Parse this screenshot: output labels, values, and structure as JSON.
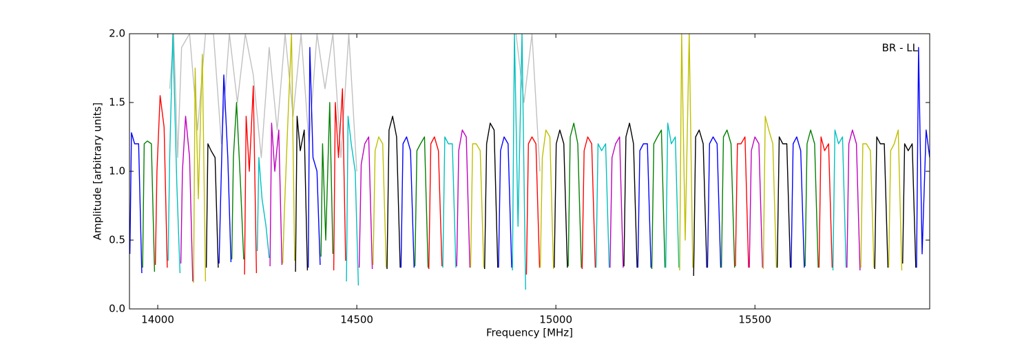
{
  "chart_data": {
    "type": "line",
    "xlabel": "Frequency [MHz]",
    "ylabel": "Amplitude [arbitrary units]",
    "annotation": "BR - LL",
    "xlim": [
      13929,
      15939
    ],
    "ylim": [
      0,
      2
    ],
    "xticks": [
      14000,
      14500,
      15000,
      15500
    ],
    "yticks": [
      {
        "value": 0,
        "label": "0.0"
      },
      {
        "value": 0.5,
        "label": "0.5"
      },
      {
        "value": 1,
        "label": "1.0"
      },
      {
        "value": 1.5,
        "label": "1.5"
      },
      {
        "value": 2,
        "label": "2.0"
      }
    ],
    "series": [
      {
        "color": "#c0c0c0",
        "x": [
          14030,
          14040,
          14050,
          14060,
          14080,
          14100,
          14120,
          14140,
          14160,
          14180,
          14200,
          14220,
          14240,
          14260,
          14280,
          14300,
          14320,
          14340,
          14360,
          14380,
          14400,
          14420,
          14440,
          14460,
          14480,
          14500,
          14700,
          14900,
          14920,
          14940,
          14960
        ],
        "values": [
          1.6,
          2.0,
          1.1,
          1.9,
          2.0,
          1.3,
          2.0,
          2.0,
          1.2,
          2.0,
          1.5,
          2.0,
          1.7,
          1.1,
          1.9,
          1.3,
          2.0,
          1.4,
          2.0,
          1.2,
          2.0,
          1.6,
          2.0,
          1.1,
          2.0,
          1.0,
          null,
          2.0,
          1.5,
          2.0,
          1.0
        ]
      },
      {
        "color": "#0000ff",
        "x": [
          13930,
          13934,
          13942,
          13952,
          13960
        ],
        "values": [
          0.4,
          1.28,
          1.2,
          1.2,
          0.26
        ]
      },
      {
        "color": "#008000",
        "x": [
          13962,
          13966,
          13974,
          13984,
          13992
        ],
        "values": [
          0.3,
          1.2,
          1.22,
          1.2,
          0.27
        ]
      },
      {
        "color": "#ff0000",
        "x": [
          13994,
          13998,
          14006,
          14016,
          14024
        ],
        "values": [
          0.32,
          1.0,
          1.55,
          1.32,
          0.3
        ]
      },
      {
        "color": "#00bfbf",
        "x": [
          14026,
          14030,
          14038,
          14048,
          14056
        ],
        "values": [
          0.35,
          1.1,
          2.0,
          0.9,
          0.26
        ]
      },
      {
        "color": "#bf00bf",
        "x": [
          14058,
          14062,
          14070,
          14080,
          14088
        ],
        "values": [
          0.33,
          1.0,
          1.4,
          1.1,
          0.2
        ]
      },
      {
        "color": "#bfbf00",
        "x": [
          14090,
          14094,
          14102,
          14112,
          14120
        ],
        "values": [
          0.19,
          1.75,
          0.8,
          1.85,
          0.2
        ]
      },
      {
        "color": "#000000",
        "x": [
          14122,
          14126,
          14134,
          14144,
          14152
        ],
        "values": [
          0.3,
          1.2,
          1.15,
          1.1,
          0.3
        ]
      },
      {
        "color": "#0000ff",
        "x": [
          14154,
          14158,
          14166,
          14176,
          14184
        ],
        "values": [
          0.33,
          0.8,
          1.7,
          1.1,
          0.34
        ]
      },
      {
        "color": "#008000",
        "x": [
          14186,
          14190,
          14198,
          14208,
          14216
        ],
        "values": [
          0.36,
          1.1,
          1.5,
          0.9,
          0.36
        ]
      },
      {
        "color": "#ff0000",
        "x": [
          14218,
          14222,
          14230,
          14240,
          14248
        ],
        "values": [
          0.25,
          1.4,
          1.0,
          1.62,
          0.26
        ]
      },
      {
        "color": "#00bfbf",
        "x": [
          14250,
          14254,
          14262,
          14272,
          14280
        ],
        "values": [
          0.42,
          1.1,
          0.8,
          0.6,
          0.37
        ]
      },
      {
        "color": "#bf00bf",
        "x": [
          14282,
          14286,
          14294,
          14304,
          14312
        ],
        "values": [
          0.31,
          1.35,
          1.0,
          1.3,
          0.32
        ]
      },
      {
        "color": "#bfbf00",
        "x": [
          14314,
          14318,
          14326,
          14336,
          14344
        ],
        "values": [
          0.33,
          0.7,
          1.3,
          2.0,
          0.35
        ]
      },
      {
        "color": "#000000",
        "x": [
          14346,
          14350,
          14358,
          14368,
          14376
        ],
        "values": [
          0.27,
          1.4,
          1.15,
          1.3,
          0.28
        ]
      },
      {
        "color": "#0000ff",
        "x": [
          14378,
          14382,
          14390,
          14400,
          14408
        ],
        "values": [
          0.3,
          1.9,
          1.1,
          1.0,
          0.32
        ]
      },
      {
        "color": "#008000",
        "x": [
          14410,
          14414,
          14422,
          14432,
          14440
        ],
        "values": [
          0.38,
          1.2,
          0.5,
          1.5,
          0.4
        ]
      },
      {
        "color": "#ff0000",
        "x": [
          14442,
          14446,
          14454,
          14464,
          14472
        ],
        "values": [
          0.28,
          1.5,
          1.1,
          1.6,
          0.35
        ]
      },
      {
        "color": "#00bfbf",
        "x": [
          14474,
          14478,
          14486,
          14496,
          14504
        ],
        "values": [
          0.2,
          1.4,
          1.2,
          1.0,
          0.17
        ]
      },
      {
        "color": "#bf00bf",
        "x": [
          14506,
          14511,
          14520,
          14530,
          14539
        ],
        "values": [
          0.3,
          1.05,
          1.2,
          1.25,
          0.29
        ]
      },
      {
        "color": "#bfbf00",
        "x": [
          14541,
          14546,
          14555,
          14565,
          14574
        ],
        "values": [
          0.32,
          1.15,
          1.25,
          1.2,
          0.3
        ]
      },
      {
        "color": "#000000",
        "x": [
          14576,
          14581,
          14590,
          14600,
          14609
        ],
        "values": [
          0.29,
          1.3,
          1.4,
          1.25,
          0.3
        ]
      },
      {
        "color": "#0000ff",
        "x": [
          14611,
          14616,
          14625,
          14635,
          14644
        ],
        "values": [
          0.3,
          1.2,
          1.25,
          1.15,
          0.3
        ]
      },
      {
        "color": "#008000",
        "x": [
          14646,
          14651,
          14660,
          14670,
          14679
        ],
        "values": [
          0.31,
          1.15,
          1.2,
          1.25,
          0.3
        ]
      },
      {
        "color": "#ff0000",
        "x": [
          14681,
          14686,
          14695,
          14705,
          14714
        ],
        "values": [
          0.29,
          1.2,
          1.25,
          1.15,
          0.31
        ]
      },
      {
        "color": "#00bfbf",
        "x": [
          14716,
          14721,
          14730,
          14740,
          14749
        ],
        "values": [
          0.3,
          1.25,
          1.2,
          1.2,
          0.3
        ]
      },
      {
        "color": "#bf00bf",
        "x": [
          14751,
          14756,
          14765,
          14775,
          14784
        ],
        "values": [
          0.31,
          1.15,
          1.3,
          1.25,
          0.3
        ]
      },
      {
        "color": "#bfbf00",
        "x": [
          14786,
          14791,
          14800,
          14810,
          14819
        ],
        "values": [
          0.3,
          1.2,
          1.2,
          1.15,
          0.3
        ]
      },
      {
        "color": "#000000",
        "x": [
          14821,
          14826,
          14835,
          14845,
          14854
        ],
        "values": [
          0.29,
          1.2,
          1.35,
          1.3,
          0.3
        ]
      },
      {
        "color": "#0000ff",
        "x": [
          14856,
          14861,
          14870,
          14880,
          14889
        ],
        "values": [
          0.3,
          1.15,
          1.25,
          1.2,
          0.3
        ]
      },
      {
        "color": "#00bfbf",
        "x": [
          14891,
          14896,
          14905,
          14915,
          14924
        ],
        "values": [
          0.28,
          2.0,
          0.6,
          2.0,
          0.14
        ]
      },
      {
        "color": "#ff0000",
        "x": [
          14926,
          14931,
          14940,
          14950,
          14959
        ],
        "values": [
          0.25,
          1.2,
          1.25,
          1.2,
          0.3
        ]
      },
      {
        "color": "#bfbf00",
        "x": [
          14961,
          14966,
          14975,
          14985,
          14994
        ],
        "values": [
          0.3,
          1.1,
          1.3,
          1.25,
          0.29
        ]
      },
      {
        "color": "#000000",
        "x": [
          14996,
          15001,
          15010,
          15020,
          15029
        ],
        "values": [
          0.3,
          1.2,
          1.3,
          1.2,
          0.3
        ]
      },
      {
        "color": "#008000",
        "x": [
          15031,
          15036,
          15045,
          15055,
          15064
        ],
        "values": [
          0.31,
          1.25,
          1.35,
          1.2,
          0.3
        ]
      },
      {
        "color": "#ff0000",
        "x": [
          15066,
          15071,
          15080,
          15090,
          15099
        ],
        "values": [
          0.29,
          1.15,
          1.25,
          1.2,
          0.3
        ]
      },
      {
        "color": "#00bfbf",
        "x": [
          15101,
          15106,
          15115,
          15125,
          15134
        ],
        "values": [
          0.3,
          1.2,
          1.15,
          1.2,
          0.3
        ]
      },
      {
        "color": "#bf00bf",
        "x": [
          15136,
          15141,
          15150,
          15160,
          15169
        ],
        "values": [
          0.3,
          1.1,
          1.2,
          1.25,
          0.3
        ]
      },
      {
        "color": "#000000",
        "x": [
          15171,
          15176,
          15185,
          15195,
          15204
        ],
        "values": [
          0.31,
          1.25,
          1.35,
          1.2,
          0.3
        ]
      },
      {
        "color": "#0000ff",
        "x": [
          15206,
          15211,
          15220,
          15230,
          15239
        ],
        "values": [
          0.3,
          1.15,
          1.2,
          1.2,
          0.3
        ]
      },
      {
        "color": "#008000",
        "x": [
          15241,
          15246,
          15255,
          15265,
          15274
        ],
        "values": [
          0.29,
          1.2,
          1.25,
          1.3,
          0.3
        ]
      },
      {
        "color": "#00bfbf",
        "x": [
          15276,
          15281,
          15290,
          15300,
          15309
        ],
        "values": [
          0.3,
          1.35,
          1.2,
          1.25,
          0.3
        ]
      },
      {
        "color": "#bfbf00",
        "x": [
          15311,
          15316,
          15325,
          15335,
          15344
        ],
        "values": [
          0.28,
          2.0,
          0.5,
          2.0,
          0.3
        ]
      },
      {
        "color": "#000000",
        "x": [
          15346,
          15351,
          15360,
          15370,
          15379
        ],
        "values": [
          0.24,
          1.25,
          1.3,
          1.2,
          0.3
        ]
      },
      {
        "color": "#0000ff",
        "x": [
          15381,
          15386,
          15395,
          15405,
          15414
        ],
        "values": [
          0.3,
          1.2,
          1.25,
          1.2,
          0.3
        ]
      },
      {
        "color": "#008000",
        "x": [
          15416,
          15421,
          15430,
          15440,
          15449
        ],
        "values": [
          0.3,
          1.25,
          1.3,
          1.2,
          0.3
        ]
      },
      {
        "color": "#ff0000",
        "x": [
          15451,
          15456,
          15465,
          15475,
          15484
        ],
        "values": [
          0.31,
          1.2,
          1.2,
          1.25,
          0.3
        ]
      },
      {
        "color": "#bf00bf",
        "x": [
          15486,
          15491,
          15500,
          15510,
          15519
        ],
        "values": [
          0.3,
          1.15,
          1.25,
          1.2,
          0.3
        ]
      },
      {
        "color": "#bfbf00",
        "x": [
          15521,
          15526,
          15535,
          15545,
          15554
        ],
        "values": [
          0.29,
          1.4,
          1.3,
          1.2,
          0.3
        ]
      },
      {
        "color": "#000000",
        "x": [
          15556,
          15561,
          15570,
          15580,
          15589
        ],
        "values": [
          0.3,
          1.25,
          1.2,
          1.2,
          0.3
        ]
      },
      {
        "color": "#0000ff",
        "x": [
          15591,
          15596,
          15605,
          15615,
          15624
        ],
        "values": [
          0.3,
          1.2,
          1.25,
          1.15,
          0.3
        ]
      },
      {
        "color": "#008000",
        "x": [
          15626,
          15631,
          15640,
          15650,
          15659
        ],
        "values": [
          0.31,
          1.2,
          1.3,
          1.2,
          0.3
        ]
      },
      {
        "color": "#ff0000",
        "x": [
          15661,
          15666,
          15675,
          15685,
          15694
        ],
        "values": [
          0.3,
          1.25,
          1.15,
          1.2,
          0.3
        ]
      },
      {
        "color": "#00bfbf",
        "x": [
          15696,
          15701,
          15710,
          15720,
          15729
        ],
        "values": [
          0.28,
          1.3,
          1.2,
          1.25,
          0.3
        ]
      },
      {
        "color": "#bf00bf",
        "x": [
          15731,
          15736,
          15745,
          15755,
          15764
        ],
        "values": [
          0.3,
          1.2,
          1.3,
          1.2,
          0.28
        ]
      },
      {
        "color": "#bfbf00",
        "x": [
          15766,
          15771,
          15780,
          15790,
          15799
        ],
        "values": [
          0.3,
          1.2,
          1.2,
          1.15,
          0.3
        ]
      },
      {
        "color": "#000000",
        "x": [
          15801,
          15806,
          15815,
          15825,
          15834
        ],
        "values": [
          0.29,
          1.25,
          1.2,
          1.2,
          0.3
        ]
      },
      {
        "color": "#bfbf00",
        "x": [
          15836,
          15841,
          15850,
          15860,
          15869
        ],
        "values": [
          0.3,
          1.15,
          1.2,
          1.3,
          0.28
        ]
      },
      {
        "color": "#000000",
        "x": [
          15871,
          15876,
          15885,
          15895,
          15904
        ],
        "values": [
          0.33,
          1.2,
          1.15,
          1.2,
          0.3
        ]
      },
      {
        "color": "#0000ff",
        "x": [
          15906,
          15911,
          15920,
          15930,
          15939
        ],
        "values": [
          0.3,
          1.9,
          0.4,
          1.3,
          1.1
        ]
      }
    ]
  }
}
